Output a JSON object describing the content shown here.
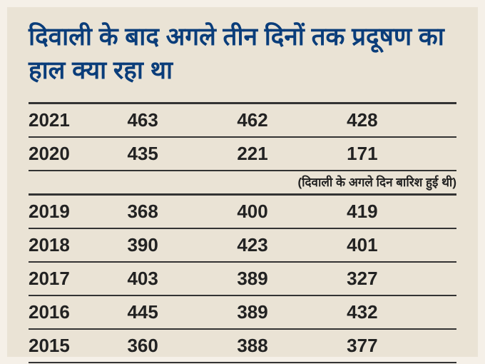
{
  "title": "दिवाली के बाद अगले तीन दिनों तक प्रदूषण का हाल क्या रहा था",
  "note": "(दिवाली के अगले दिन बारिश हुई थी)",
  "rows": [
    {
      "year": "2021",
      "d1": "463",
      "d2": "462",
      "d3": "428"
    },
    {
      "year": "2020",
      "d1": "435",
      "d2": "221",
      "d3": "171"
    },
    {
      "year": "2019",
      "d1": "368",
      "d2": "400",
      "d3": "419"
    },
    {
      "year": "2018",
      "d1": "390",
      "d2": "423",
      "d3": "401"
    },
    {
      "year": "2017",
      "d1": "403",
      "d2": "389",
      "d3": "327"
    },
    {
      "year": "2016",
      "d1": "445",
      "d2": "389",
      "d3": "432"
    },
    {
      "year": "2015",
      "d1": "360",
      "d2": "388",
      "d3": "377"
    }
  ],
  "colors": {
    "title": "#0a3d7a",
    "background": "#eae3d5",
    "text": "#222",
    "border": "#333"
  },
  "typography": {
    "title_fontsize": 35,
    "cell_fontsize": 26,
    "note_fontsize": 17
  }
}
